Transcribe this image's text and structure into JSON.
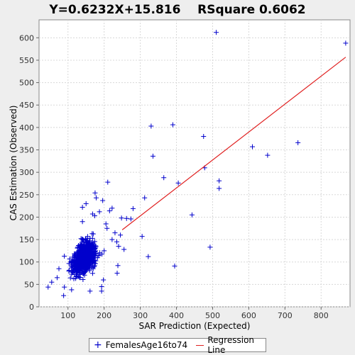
{
  "chart_data": {
    "type": "scatter",
    "title": "Y=0.6232X+15.816    RSquare 0.6062",
    "xlabel": "SAR Prediction (Expected)",
    "ylabel": "CAS Estimation (Observed)",
    "xlim": [
      20,
      880
    ],
    "ylim": [
      0,
      640
    ],
    "xticks": [
      0,
      100,
      200,
      300,
      400,
      500,
      600,
      700,
      800,
      900
    ],
    "yticks": [
      0,
      50,
      100,
      150,
      200,
      250,
      300,
      350,
      400,
      450,
      500,
      550,
      600
    ],
    "grid": true,
    "legend_position": "bottom",
    "regression": {
      "slope": 0.6232,
      "intercept": 15.816,
      "x_range": [
        250,
        868
      ],
      "name": "Regression Line",
      "color": "#e02020"
    },
    "series": [
      {
        "name": "FemalesAge16to74",
        "marker": "plus",
        "color": "#0000cc",
        "points": [
          [
            510,
            612
          ],
          [
            868,
            588
          ],
          [
            330,
            403
          ],
          [
            390,
            406
          ],
          [
            475,
            380
          ],
          [
            335,
            336
          ],
          [
            478,
            310
          ],
          [
            365,
            288
          ],
          [
            610,
            357
          ],
          [
            652,
            338
          ],
          [
            736,
            366
          ],
          [
            518,
            281
          ],
          [
            518,
            264
          ],
          [
            405,
            276
          ],
          [
            312,
            243
          ],
          [
            443,
            205
          ],
          [
            493,
            133
          ],
          [
            395,
            91
          ],
          [
            322,
            112
          ],
          [
            305,
            157
          ],
          [
            210,
            278
          ],
          [
            175,
            254
          ],
          [
            178,
            243
          ],
          [
            196,
            237
          ],
          [
            150,
            230
          ],
          [
            140,
            222
          ],
          [
            168,
            207
          ],
          [
            174,
            203
          ],
          [
            187,
            212
          ],
          [
            215,
            214
          ],
          [
            222,
            220
          ],
          [
            280,
            219
          ],
          [
            262,
            197
          ],
          [
            274,
            196
          ],
          [
            248,
            198
          ],
          [
            255,
            128
          ],
          [
            240,
            135
          ],
          [
            222,
            150
          ],
          [
            238,
            92
          ],
          [
            236,
            75
          ],
          [
            193,
            45
          ],
          [
            161,
            35
          ],
          [
            193,
            35
          ],
          [
            198,
            60
          ],
          [
            110,
            38
          ],
          [
            90,
            44
          ],
          [
            45,
            44
          ],
          [
            55,
            55
          ],
          [
            70,
            65
          ],
          [
            75,
            85
          ],
          [
            88,
            25
          ],
          [
            90,
            113
          ],
          [
            140,
            190
          ],
          [
            205,
            185
          ],
          [
            208,
            175
          ],
          [
            230,
            165
          ],
          [
            235,
            145
          ],
          [
            245,
            160
          ],
          [
            200,
            125
          ],
          [
            185,
            115
          ]
        ]
      }
    ],
    "cluster": {
      "center": [
        145,
        110
      ],
      "count": 850
    },
    "legend": [
      {
        "label": "FemalesAge16to74",
        "symbol": "+"
      },
      {
        "label": "Regression Line",
        "symbol": "line"
      }
    ]
  }
}
